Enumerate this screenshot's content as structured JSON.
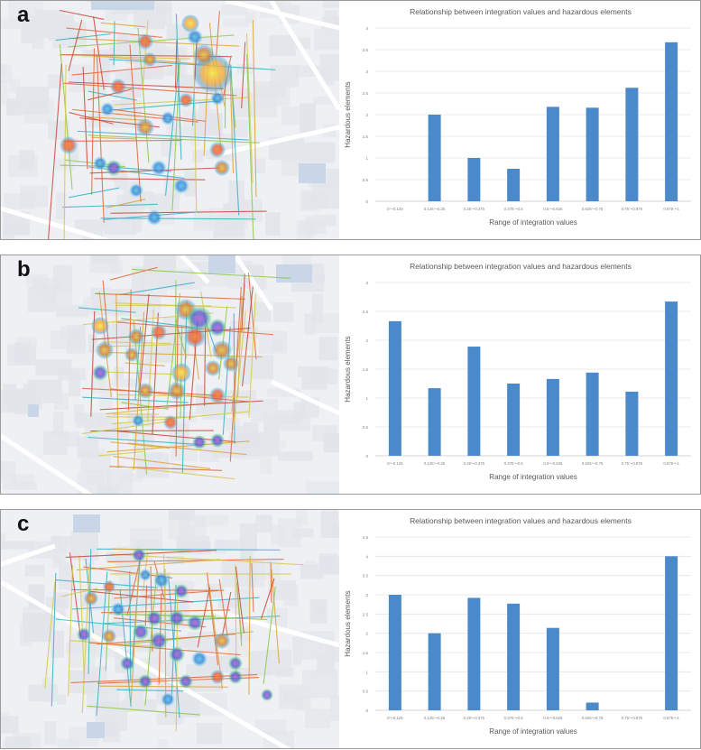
{
  "panels": [
    {
      "label": "a",
      "map_label": "Street map with heatmap of hazardous elements, panel a",
      "chart_data": {
        "type": "bar",
        "title": "Relationship between integration values and hazardous elements",
        "xlabel": "Range of integration values",
        "ylabel": "Hazardous elements",
        "categories": [
          "0～0.125",
          "0.125～0.25",
          "0.25～0.375",
          "0.375～0.5",
          "0.5～0.625",
          "0.625～0.75",
          "0.75～0.875",
          "0.875～1"
        ],
        "values": [
          0,
          2.0,
          1.0,
          0.75,
          2.18,
          2.16,
          2.62,
          3.67
        ],
        "ylim": [
          0,
          4
        ],
        "yticks": [
          "0",
          "0.5",
          "1",
          "1.5",
          "2",
          "2.5",
          "3",
          "3.5",
          "4"
        ],
        "bar_color": "#4a8acb"
      }
    },
    {
      "label": "b",
      "map_label": "Street map with heatmap of hazardous elements, panel b",
      "chart_data": {
        "type": "bar",
        "title": "Relationship between integration values and hazardous elements",
        "xlabel": "Range of integration values",
        "ylabel": "Hazardous elements",
        "categories": [
          "0～0.125",
          "0.125～0.25",
          "0.25～0.375",
          "0.375～0.5",
          "0.5～0.625",
          "0.625～0.75",
          "0.75～0.875",
          "0.875～1"
        ],
        "values": [
          2.33,
          1.17,
          1.89,
          1.25,
          1.33,
          1.44,
          1.11,
          2.67
        ],
        "ylim": [
          0,
          3
        ],
        "yticks": [
          "0",
          "0.5",
          "1",
          "1.5",
          "2",
          "2.5",
          "3"
        ],
        "bar_color": "#4a8acb"
      }
    },
    {
      "label": "c",
      "map_label": "Street map with heatmap of hazardous elements, panel c",
      "chart_data": {
        "type": "bar",
        "title": "Relationship between integration values and hazardous elements",
        "xlabel": "Range of integration values",
        "ylabel": "Hazardous elements",
        "categories": [
          "0～0.125",
          "0.125～0.25",
          "0.25～0.375",
          "0.375～0.5",
          "0.5～0.625",
          "0.625～0.75",
          "0.75～0.875",
          "0.875～1"
        ],
        "values": [
          3.0,
          2.0,
          2.92,
          2.77,
          2.14,
          0.2,
          0,
          4.0
        ],
        "ylim": [
          0,
          4.5
        ],
        "yticks": [
          "0",
          "0.5",
          "1",
          "1.5",
          "2",
          "2.5",
          "3",
          "3.5",
          "4",
          "4.5"
        ],
        "bar_color": "#4a8acb"
      }
    }
  ]
}
